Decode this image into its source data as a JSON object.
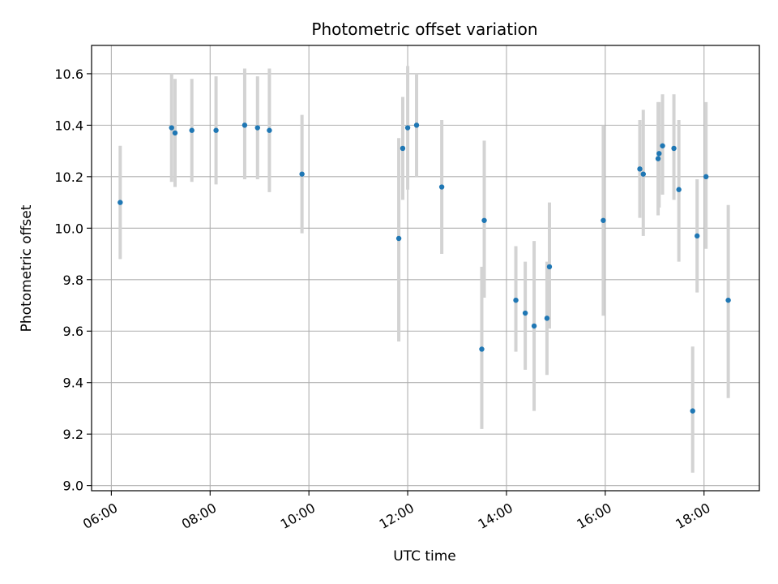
{
  "chart_data": {
    "type": "scatter",
    "title": "Photometric offset variation",
    "xlabel": "UTC time",
    "ylabel": "Photometric offset",
    "x_unit": "hours UTC",
    "xlim": [
      5.6,
      19.12
    ],
    "ylim": [
      8.98,
      10.71
    ],
    "x_ticks": [
      {
        "value": 6,
        "label": "06:00"
      },
      {
        "value": 8,
        "label": "08:00"
      },
      {
        "value": 10,
        "label": "10:00"
      },
      {
        "value": 12,
        "label": "12:00"
      },
      {
        "value": 14,
        "label": "14:00"
      },
      {
        "value": 16,
        "label": "16:00"
      },
      {
        "value": 18,
        "label": "18:00"
      }
    ],
    "y_ticks": [
      {
        "value": 9.0,
        "label": "9.0"
      },
      {
        "value": 9.2,
        "label": "9.2"
      },
      {
        "value": 9.4,
        "label": "9.4"
      },
      {
        "value": 9.6,
        "label": "9.6"
      },
      {
        "value": 9.8,
        "label": "9.8"
      },
      {
        "value": 10.0,
        "label": "10.0"
      },
      {
        "value": 10.2,
        "label": "10.2"
      },
      {
        "value": 10.4,
        "label": "10.4"
      },
      {
        "value": 10.6,
        "label": "10.6"
      }
    ],
    "grid": true,
    "marker_color": "#1f77b4",
    "errorbar_color": "#d3d3d3",
    "points": [
      {
        "x": 6.18,
        "y": 10.1,
        "ylow": 9.88,
        "yhigh": 10.32
      },
      {
        "x": 7.22,
        "y": 10.39,
        "ylow": 10.18,
        "yhigh": 10.6
      },
      {
        "x": 7.29,
        "y": 10.37,
        "ylow": 10.16,
        "yhigh": 10.58
      },
      {
        "x": 7.63,
        "y": 10.38,
        "ylow": 10.18,
        "yhigh": 10.58
      },
      {
        "x": 8.12,
        "y": 10.38,
        "ylow": 10.17,
        "yhigh": 10.59
      },
      {
        "x": 8.7,
        "y": 10.4,
        "ylow": 10.19,
        "yhigh": 10.62
      },
      {
        "x": 8.96,
        "y": 10.39,
        "ylow": 10.19,
        "yhigh": 10.59
      },
      {
        "x": 9.2,
        "y": 10.38,
        "ylow": 10.14,
        "yhigh": 10.62
      },
      {
        "x": 9.86,
        "y": 10.21,
        "ylow": 9.98,
        "yhigh": 10.44
      },
      {
        "x": 11.82,
        "y": 9.96,
        "ylow": 9.56,
        "yhigh": 10.35
      },
      {
        "x": 11.9,
        "y": 10.31,
        "ylow": 10.11,
        "yhigh": 10.51
      },
      {
        "x": 12.0,
        "y": 10.39,
        "ylow": 10.15,
        "yhigh": 10.63
      },
      {
        "x": 12.18,
        "y": 10.4,
        "ylow": 10.2,
        "yhigh": 10.6
      },
      {
        "x": 12.69,
        "y": 10.16,
        "ylow": 9.9,
        "yhigh": 10.42
      },
      {
        "x": 13.5,
        "y": 9.53,
        "ylow": 9.22,
        "yhigh": 9.85
      },
      {
        "x": 13.55,
        "y": 10.03,
        "ylow": 9.73,
        "yhigh": 10.34
      },
      {
        "x": 14.19,
        "y": 9.72,
        "ylow": 9.52,
        "yhigh": 9.93
      },
      {
        "x": 14.38,
        "y": 9.67,
        "ylow": 9.45,
        "yhigh": 9.87
      },
      {
        "x": 14.56,
        "y": 9.62,
        "ylow": 9.29,
        "yhigh": 9.95
      },
      {
        "x": 14.82,
        "y": 9.65,
        "ylow": 9.43,
        "yhigh": 9.87
      },
      {
        "x": 14.87,
        "y": 9.85,
        "ylow": 9.61,
        "yhigh": 10.1
      },
      {
        "x": 15.96,
        "y": 10.03,
        "ylow": 9.66,
        "yhigh": 10.4
      },
      {
        "x": 16.7,
        "y": 10.23,
        "ylow": 10.04,
        "yhigh": 10.42
      },
      {
        "x": 16.77,
        "y": 10.21,
        "ylow": 9.97,
        "yhigh": 10.46
      },
      {
        "x": 17.07,
        "y": 10.27,
        "ylow": 10.05,
        "yhigh": 10.49
      },
      {
        "x": 17.09,
        "y": 10.29,
        "ylow": 10.08,
        "yhigh": 10.49
      },
      {
        "x": 17.16,
        "y": 10.32,
        "ylow": 10.13,
        "yhigh": 10.52
      },
      {
        "x": 17.39,
        "y": 10.31,
        "ylow": 10.11,
        "yhigh": 10.52
      },
      {
        "x": 17.49,
        "y": 10.15,
        "ylow": 9.87,
        "yhigh": 10.42
      },
      {
        "x": 17.77,
        "y": 9.29,
        "ylow": 9.05,
        "yhigh": 9.54
      },
      {
        "x": 17.86,
        "y": 9.97,
        "ylow": 9.75,
        "yhigh": 10.19
      },
      {
        "x": 18.04,
        "y": 10.2,
        "ylow": 9.92,
        "yhigh": 10.49
      },
      {
        "x": 18.49,
        "y": 9.72,
        "ylow": 9.34,
        "yhigh": 10.09
      }
    ]
  }
}
